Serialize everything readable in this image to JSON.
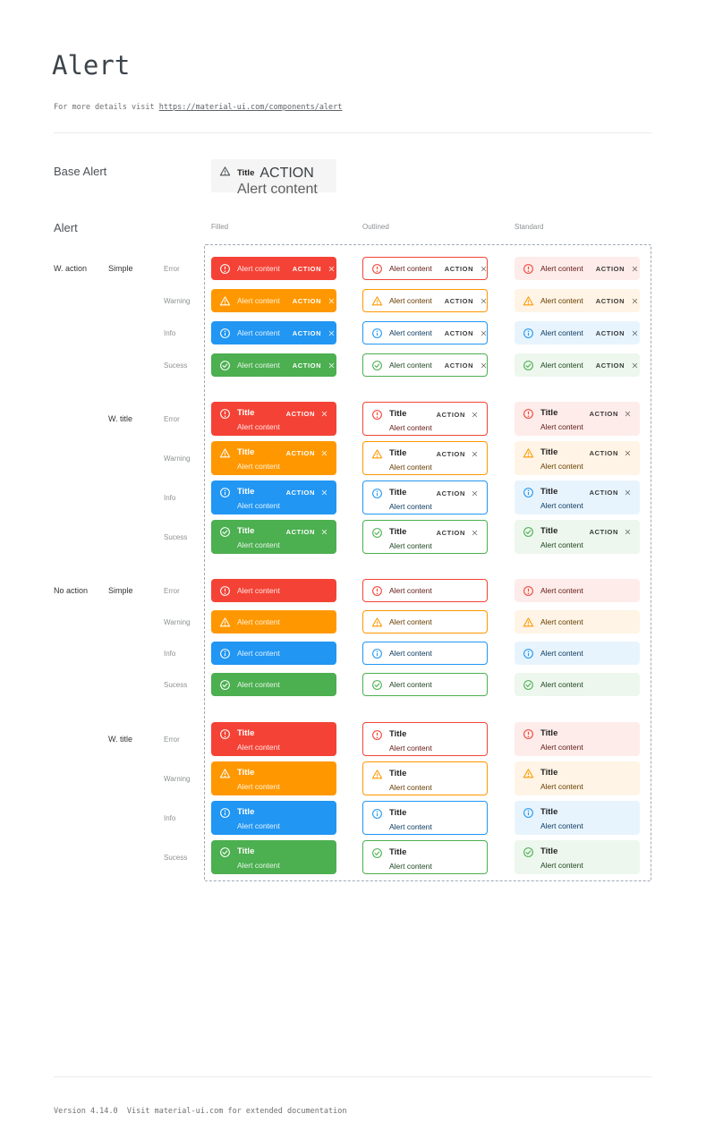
{
  "header": {
    "title": "Alert",
    "subtitle_prefix": "For more details visit ",
    "link": "https://material-ui.com/components/alert"
  },
  "base_section": {
    "heading": "Base Alert"
  },
  "alert_strings": {
    "title": "Title",
    "content": "Alert content",
    "action": "ACTION"
  },
  "grid": {
    "heading": "Alert",
    "variants": [
      {
        "id": "filled",
        "label": "Filled"
      },
      {
        "id": "outlined",
        "label": "Outlined"
      },
      {
        "id": "standard",
        "label": "Standard"
      }
    ],
    "groups": [
      {
        "label": "W. action",
        "subgroups": [
          {
            "label": "Simple"
          },
          {
            "label": "W. title"
          }
        ]
      },
      {
        "label": "No action",
        "subgroups": [
          {
            "label": "Simple"
          },
          {
            "label": "W. title"
          }
        ]
      }
    ],
    "severities": [
      {
        "id": "error",
        "label": "Error",
        "main": "#f44336",
        "text_dark": "#611a15",
        "standard_bg": "#fdecea"
      },
      {
        "id": "warning",
        "label": "Warning",
        "main": "#ff9800",
        "text_dark": "#663c00",
        "standard_bg": "#fff4e5"
      },
      {
        "id": "info",
        "label": "Info",
        "main": "#2196f3",
        "text_dark": "#0d3c61",
        "standard_bg": "#e8f4fd"
      },
      {
        "id": "success",
        "label": "Sucess",
        "main": "#4caf50",
        "text_dark": "#1e4620",
        "standard_bg": "#edf7ed"
      }
    ]
  },
  "icons": {
    "error": "error-outline-icon",
    "warning": "warning-triangle-icon",
    "info": "info-outline-icon",
    "success": "check-circle-icon",
    "close": "close-icon",
    "base_alert": "warning-triangle-icon"
  },
  "colors": {
    "page_bg": "#ffffff",
    "base_alert_bg": "#f5f5f5",
    "dashed_border": "#9fa9b5",
    "divider": "#ebebeb",
    "heading_text": "#4d5156",
    "muted_text": "#8d9093",
    "mono_text": "#6f6f6f",
    "filled_text": "#ffffff"
  },
  "footer": {
    "text": "Version 4.14.0  Visit material-ui.com for extended documentation"
  }
}
